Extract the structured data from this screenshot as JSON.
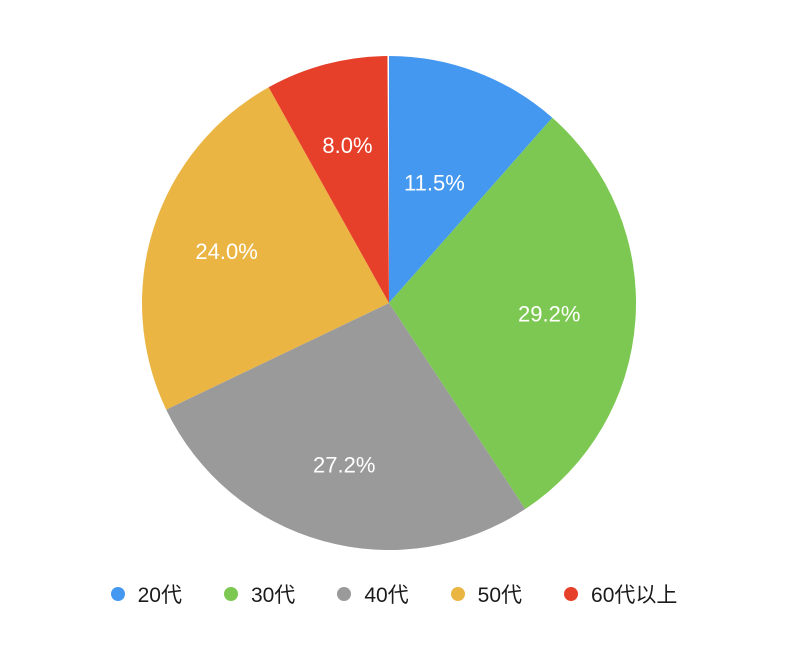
{
  "background_color": "#ffffff",
  "chart_data": {
    "type": "pie",
    "title": "",
    "categories": [
      "20代",
      "30代",
      "40代",
      "50代",
      "60代以上"
    ],
    "values": [
      11.5,
      29.2,
      27.2,
      24.0,
      8.0
    ],
    "slice_labels": [
      "11.5%",
      "29.2%",
      "27.2%",
      "24.0%",
      "8.0%"
    ],
    "colors": [
      "#4598F0",
      "#7CC852",
      "#9A9A9A",
      "#EAB543",
      "#E7402A"
    ],
    "slice_label_color": "#ffffff",
    "legend_text_color": "#1b1b1b",
    "start_angle_deg": 0,
    "direction": "clockwise",
    "total_basis": 100,
    "legend_position": "bottom",
    "legend_marker": "circle",
    "label_radius_factors": [
      0.52,
      0.65,
      0.68,
      0.69,
      0.66
    ]
  }
}
